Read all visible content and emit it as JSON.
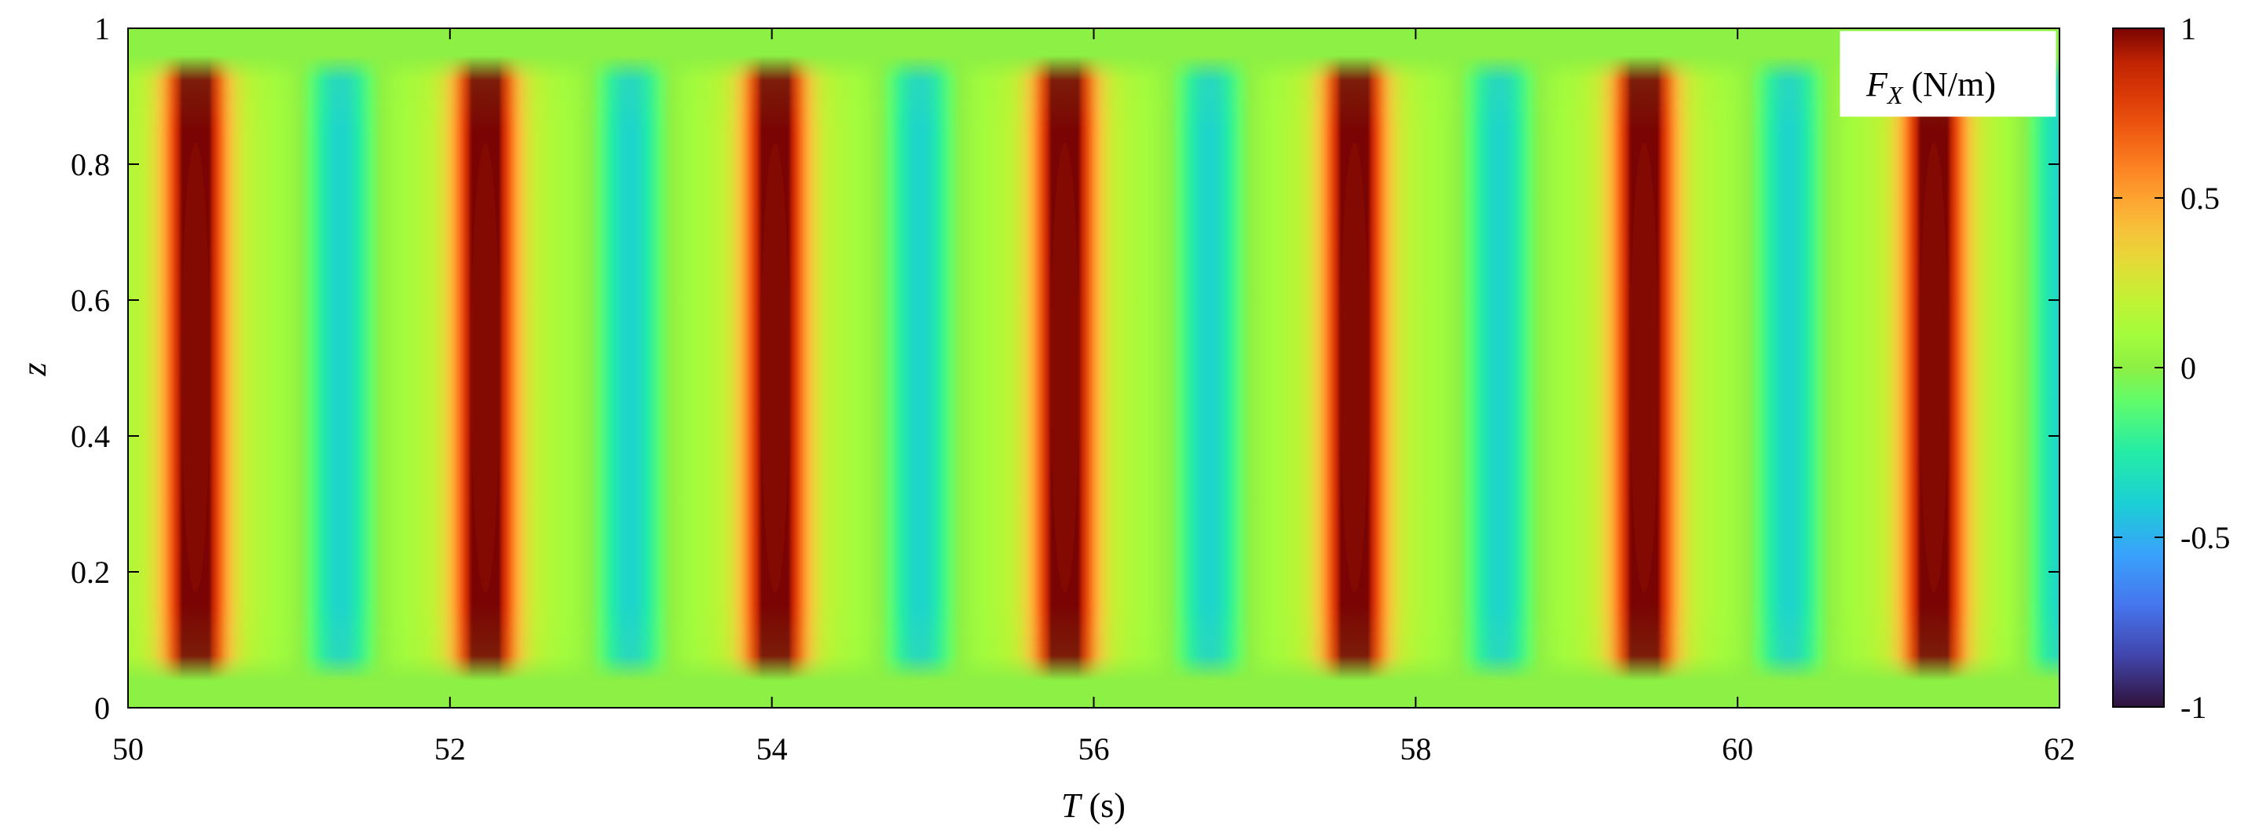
{
  "chart_data": {
    "type": "heatmap",
    "title": "",
    "xlabel": "T (s)",
    "ylabel": "z",
    "xlabel_parts": {
      "symbol": "T",
      "unit": " (s)"
    },
    "xlim": [
      50,
      62
    ],
    "ylim": [
      0,
      1
    ],
    "x_ticks": [
      "50",
      "52",
      "54",
      "56",
      "58",
      "60",
      "62"
    ],
    "y_ticks": [
      "0",
      "0.2",
      "0.4",
      "0.6",
      "0.8",
      "1"
    ],
    "colorbar": {
      "range": [
        -1,
        1
      ],
      "ticks": [
        "-1",
        "-0.5",
        "0",
        "0.5",
        "1"
      ],
      "colormap": "turbo"
    },
    "legend_label": "F_X (N/m)",
    "legend_parts": {
      "symbol": "F",
      "subscript": "X",
      "unit": " (N/m)"
    },
    "legend_position": "top-right",
    "field": {
      "description_source": "visible",
      "positive_peaks_T": [
        50.42,
        52.22,
        54.02,
        55.82,
        57.62,
        59.42,
        61.22
      ],
      "positive_peak_value": 0.95,
      "negative_troughs_T": [
        51.32,
        53.12,
        54.92,
        56.72,
        58.52,
        60.32,
        62.02
      ],
      "negative_trough_value": -0.4,
      "period_s": 1.8,
      "active_z_range": [
        0.04,
        0.96
      ]
    }
  }
}
